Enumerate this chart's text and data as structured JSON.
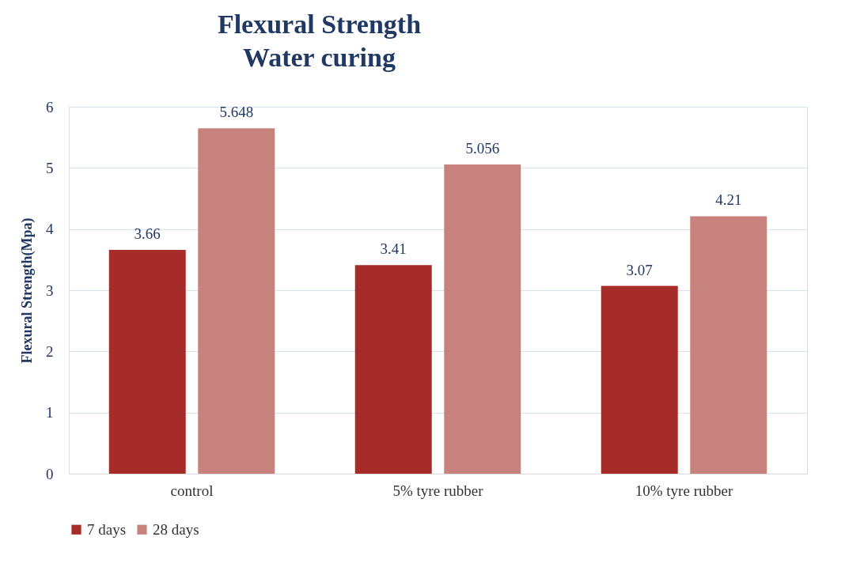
{
  "chart_data": {
    "type": "bar",
    "title": [
      "Flexural Strength",
      "Water curing"
    ],
    "ylabel": "Flexural Strength(Mpa)",
    "categories": [
      "control",
      "5% tyre rubber",
      "10% tyre rubber"
    ],
    "series": [
      {
        "name": "7 days",
        "color": "#a52c29",
        "values": [
          3.66,
          3.41,
          3.07
        ]
      },
      {
        "name": "28 days",
        "color": "#c8827d",
        "values": [
          5.648,
          5.056,
          4.21
        ]
      }
    ],
    "ylim": [
      0,
      6
    ],
    "yticks": [
      0,
      1,
      2,
      3,
      4,
      5,
      6
    ],
    "grid": "y",
    "legend": "bottom",
    "data_labels": true
  }
}
